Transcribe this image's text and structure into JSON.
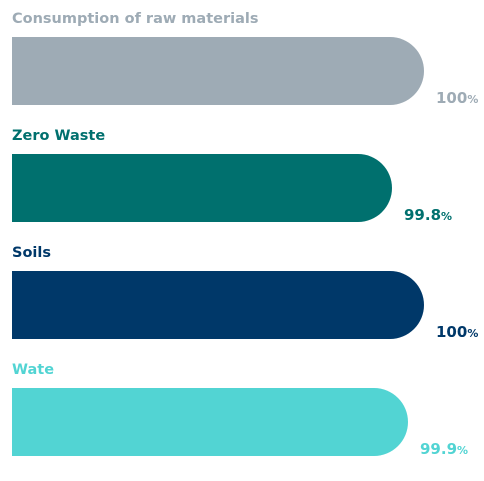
{
  "chart_data": {
    "type": "bar",
    "orientation": "horizontal",
    "title": "",
    "xlabel": "",
    "ylabel": "",
    "xlim": [
      0,
      100
    ],
    "categories": [
      "Consumption of raw materials",
      "Zero Waste",
      "Soils",
      "Wate"
    ],
    "values": [
      100,
      99.8,
      100,
      99.9
    ],
    "value_labels": [
      "100",
      "99.8",
      "100",
      "99.9"
    ],
    "unit": "%",
    "colors": [
      "#9eabb5",
      "#00706e",
      "#003869",
      "#52d4d3"
    ],
    "grid": false,
    "legend": "none"
  }
}
